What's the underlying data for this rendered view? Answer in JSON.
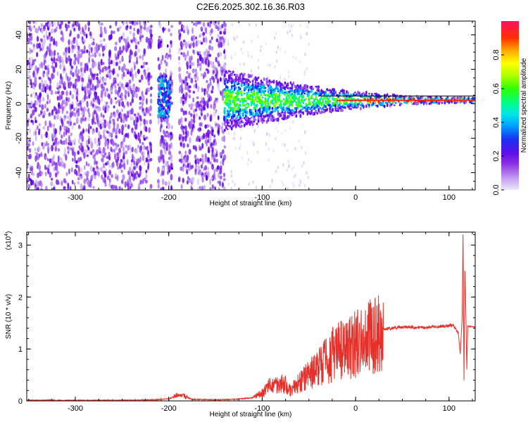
{
  "title": "C2E6.2025.302.16.36.R03",
  "chart_data": [
    {
      "type": "heatmap",
      "xlabel": "Height of straight line (km)",
      "ylabel": "Frequency (Hz)",
      "xlim": [
        -352,
        128
      ],
      "ylim": [
        -50,
        48
      ],
      "xticks": [
        "-300",
        "-200",
        "-100",
        "0",
        "100"
      ],
      "xtick_values": [
        -300,
        -200,
        -100,
        0,
        100
      ],
      "yticks": [
        "-40",
        "-20",
        "0",
        "20",
        "40"
      ],
      "ytick_values": [
        -40,
        -20,
        0,
        20,
        40
      ],
      "colorbar": {
        "label": "Normalized spectral amplitude",
        "range": [
          0,
          1
        ],
        "ticks": [
          "0.0",
          "0.2",
          "0.4",
          "0.6",
          "0.8"
        ],
        "tick_values": [
          0.0,
          0.2,
          0.4,
          0.6,
          0.8
        ]
      }
    },
    {
      "type": "line",
      "xlabel": "Height of straight line (km)",
      "ylabel": "SNR (10 * v/v)",
      "exponent_label": "(x10",
      "exponent_power": "4",
      "exponent_close": ")",
      "xlim": [
        -352,
        128
      ],
      "ylim": [
        0,
        3.25
      ],
      "xticks": [
        "-300",
        "-200",
        "-100",
        "0",
        "100"
      ],
      "xtick_values": [
        -300,
        -200,
        -100,
        0,
        100
      ],
      "yticks": [
        "0",
        "1",
        "2",
        "3"
      ],
      "ytick_values": [
        0,
        1,
        2,
        3
      ],
      "color": "#e8302a",
      "series": [
        {
          "x": [
            -352,
            -300,
            -250,
            -215,
            -200,
            -190,
            -185,
            -175,
            -150,
            -130,
            -110,
            -100,
            -95,
            -90,
            -80,
            -75,
            -70,
            -60,
            -50,
            -40,
            -30,
            -20,
            -10,
            0,
            10,
            20,
            30,
            40,
            50,
            60,
            70,
            80,
            90,
            100,
            105,
            110,
            112,
            114,
            115,
            116,
            117,
            118,
            119,
            120,
            122,
            125,
            128
          ],
          "y": [
            0.01,
            0.01,
            0.01,
            0.02,
            0.04,
            0.12,
            0.1,
            0.03,
            0.02,
            0.03,
            0.06,
            0.15,
            0.25,
            0.3,
            0.35,
            0.3,
            0.2,
            0.35,
            0.5,
            0.65,
            0.8,
            0.95,
            1.0,
            1.1,
            1.2,
            1.3,
            1.38,
            1.4,
            1.42,
            1.42,
            1.41,
            1.42,
            1.43,
            1.45,
            1.45,
            1.3,
            0.9,
            1.6,
            3.2,
            0.4,
            2.5,
            1.7,
            0.6,
            1.45,
            1.43,
            1.43,
            1.42
          ]
        }
      ]
    }
  ]
}
